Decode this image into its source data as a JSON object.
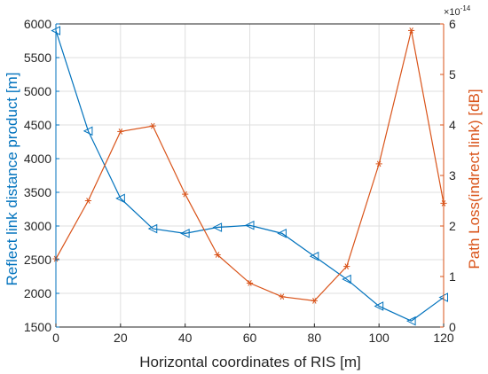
{
  "chart_data": {
    "type": "line",
    "xlabel": "Horizontal coordinates of RIS [m]",
    "ylabel_left": "Reflect link distance product [m]",
    "ylabel_right": "Path Loss(indrect link) [dB]",
    "right_axis_exponent": "×10",
    "right_axis_exponent_power": "-14",
    "xlim": [
      0,
      120
    ],
    "ylim_left": [
      1500,
      6000
    ],
    "ylim_right": [
      0,
      6
    ],
    "xticks": [
      "0",
      "20",
      "40",
      "60",
      "80",
      "100",
      "120"
    ],
    "yticks_left": [
      "1500",
      "2000",
      "2500",
      "3000",
      "3500",
      "4000",
      "4500",
      "5000",
      "5500",
      "6000"
    ],
    "yticks_right": [
      "0",
      "1",
      "2",
      "3",
      "4",
      "5",
      "6"
    ],
    "grid": true,
    "x": [
      0,
      10,
      20,
      30,
      40,
      50,
      60,
      70,
      80,
      90,
      100,
      110,
      120
    ],
    "series": [
      {
        "axis": "left",
        "marker": "triangle-left",
        "color": "#0072BD",
        "values": [
          5900,
          4410,
          3410,
          2960,
          2890,
          2980,
          3010,
          2890,
          2550,
          2210,
          1810,
          1590,
          1940
        ]
      },
      {
        "axis": "right",
        "marker": "asterisk",
        "color": "#D95319",
        "values": [
          1.35,
          2.5,
          3.87,
          3.98,
          2.63,
          1.43,
          0.87,
          0.6,
          0.52,
          1.2,
          3.23,
          5.87,
          2.45
        ]
      }
    ]
  }
}
